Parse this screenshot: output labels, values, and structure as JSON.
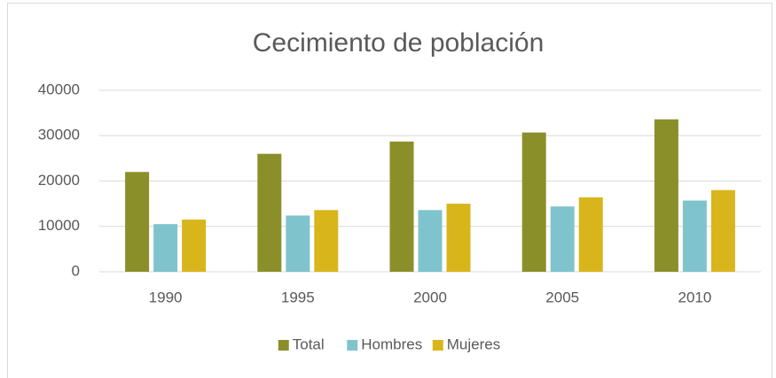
{
  "chart_data": {
    "type": "bar",
    "title": "Cecimiento de población",
    "categories": [
      "1990",
      "1995",
      "2000",
      "2005",
      "2010"
    ],
    "series": [
      {
        "name": "Total",
        "color": "#8b8f2a",
        "values": [
          22000,
          26000,
          28700,
          30700,
          33600
        ]
      },
      {
        "name": "Hombres",
        "color": "#7fc4cc",
        "values": [
          10500,
          12400,
          13600,
          14400,
          15700
        ]
      },
      {
        "name": "Mujeres",
        "color": "#d9b51c",
        "values": [
          11500,
          13600,
          15000,
          16400,
          18000
        ]
      }
    ],
    "ylim": [
      0,
      40000
    ],
    "yticks": [
      0,
      10000,
      20000,
      30000,
      40000
    ],
    "grid": true,
    "legend": "bottom"
  }
}
